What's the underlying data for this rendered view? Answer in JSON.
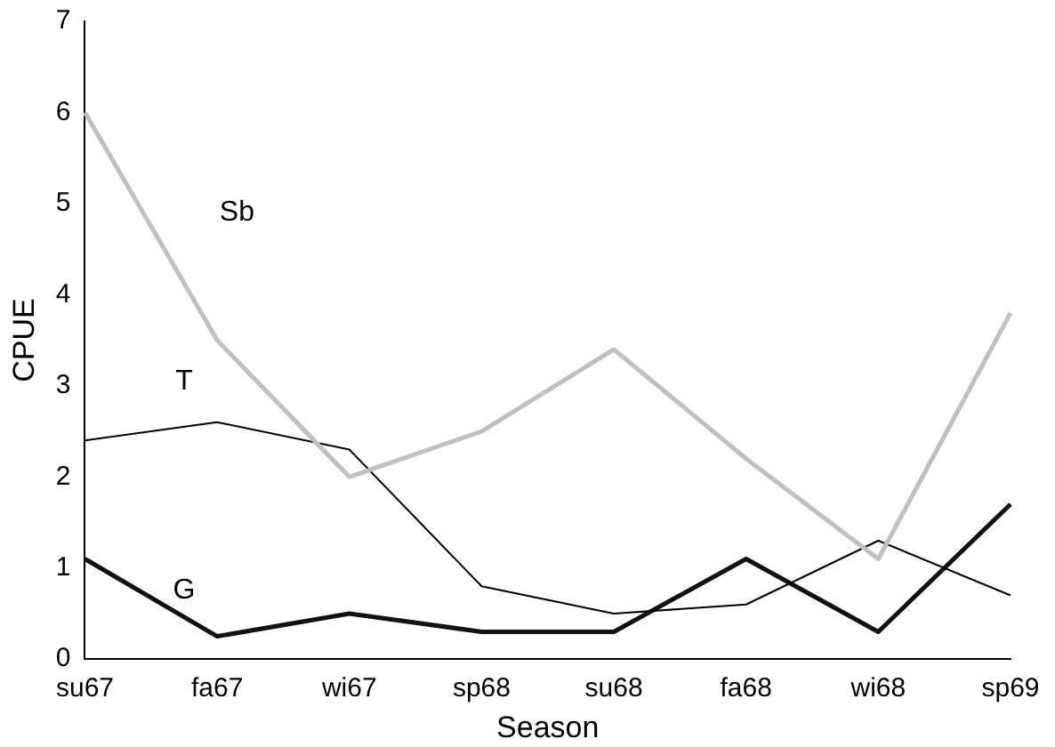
{
  "chart_data": {
    "type": "line",
    "xlabel": "Season",
    "ylabel": "CPUE",
    "categories": [
      "su67",
      "fa67",
      "wi67",
      "sp68",
      "su68",
      "fa68",
      "wi68",
      "sp69"
    ],
    "series": [
      {
        "name": "Sb",
        "color": "#c0c0c0",
        "values": [
          6.0,
          3.5,
          2.0,
          2.5,
          3.4,
          2.2,
          1.1,
          3.8
        ]
      },
      {
        "name": "T",
        "color": "#000000",
        "values": [
          2.4,
          2.6,
          2.3,
          0.8,
          0.5,
          0.6,
          1.3,
          0.7
        ]
      },
      {
        "name": "G",
        "color": "#111111",
        "values": [
          1.1,
          0.25,
          0.5,
          0.3,
          0.3,
          1.1,
          0.3,
          1.7
        ]
      }
    ],
    "ylim": [
      0,
      7
    ],
    "yticks": [
      0,
      1,
      2,
      3,
      4,
      5,
      6,
      7
    ],
    "grid": false,
    "legend": false,
    "marker": "none",
    "line_style": "solid"
  }
}
